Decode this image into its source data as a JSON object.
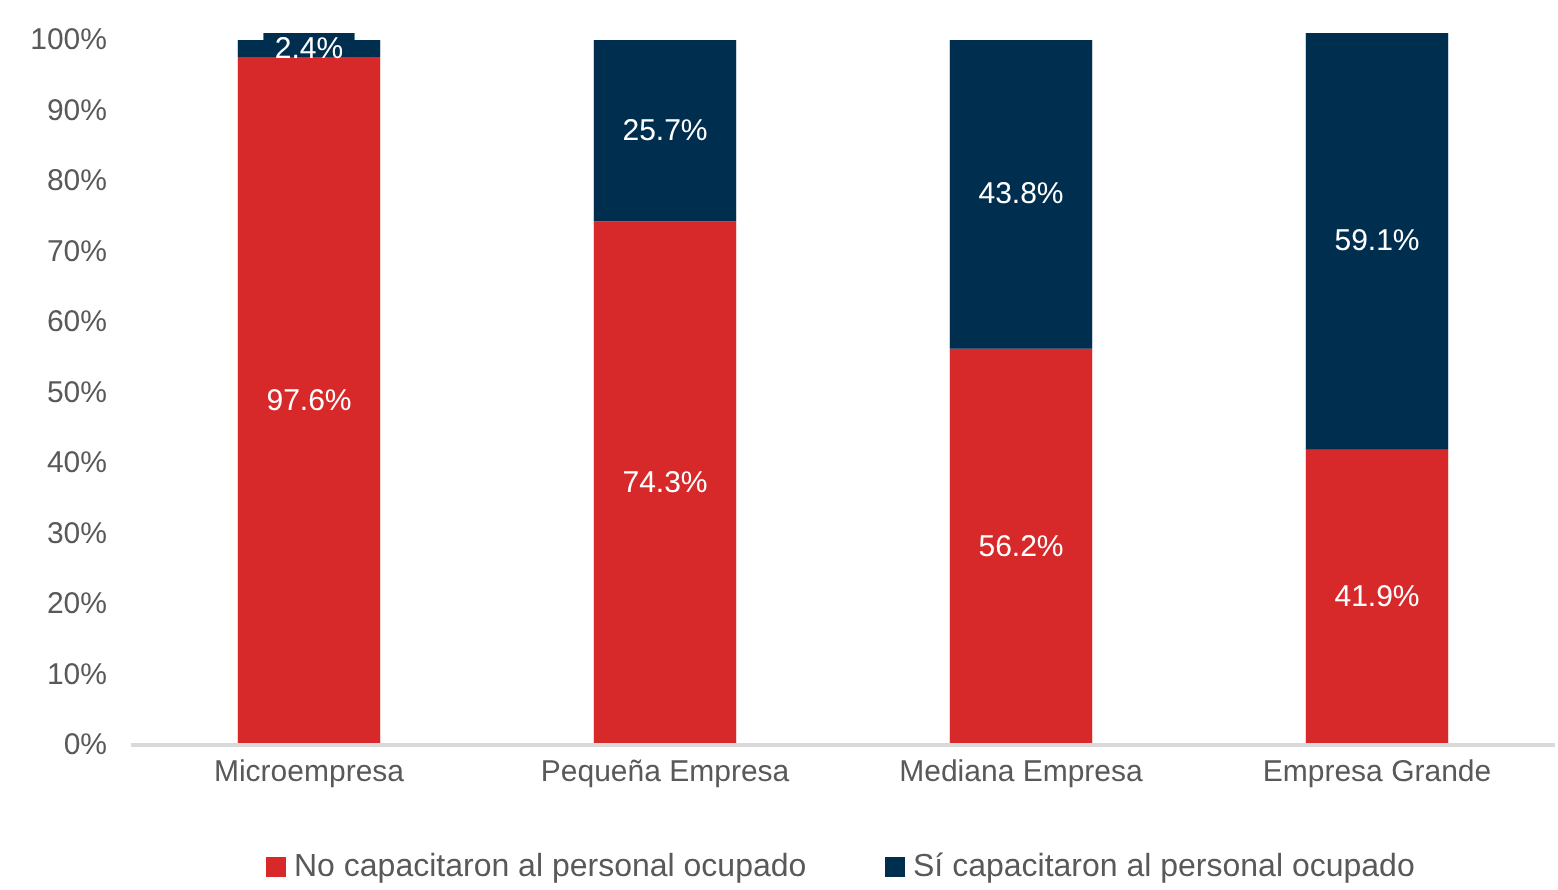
{
  "chart_data": {
    "type": "bar",
    "stacked": true,
    "categories": [
      "Microempresa",
      "Pequeña Empresa",
      "Mediana Empresa",
      "Empresa Grande"
    ],
    "series": [
      {
        "name": "No capacitaron al personal ocupado",
        "color": "#d7282a",
        "values": [
          97.6,
          74.3,
          56.2,
          41.9
        ],
        "value_labels": [
          "97.6%",
          "74.3%",
          "56.2%",
          "41.9%"
        ]
      },
      {
        "name": "Sí capacitaron al personal ocupado",
        "color": "#002e4e",
        "values": [
          2.4,
          25.7,
          43.8,
          59.1
        ],
        "value_labels": [
          "2.4%",
          "25.7%",
          "43.8%",
          "59.1%"
        ]
      }
    ],
    "ylim": [
      0,
      101
    ],
    "yticks": [
      {
        "value": 0,
        "label": "0%"
      },
      {
        "value": 10,
        "label": "10%"
      },
      {
        "value": 20,
        "label": "20%"
      },
      {
        "value": 30,
        "label": "30%"
      },
      {
        "value": 40,
        "label": "40%"
      },
      {
        "value": 50,
        "label": "50%"
      },
      {
        "value": 60,
        "label": "60%"
      },
      {
        "value": 70,
        "label": "70%"
      },
      {
        "value": 80,
        "label": "80%"
      },
      {
        "value": 90,
        "label": "90%"
      },
      {
        "value": 100,
        "label": "100%"
      }
    ],
    "legend": "bottom"
  }
}
